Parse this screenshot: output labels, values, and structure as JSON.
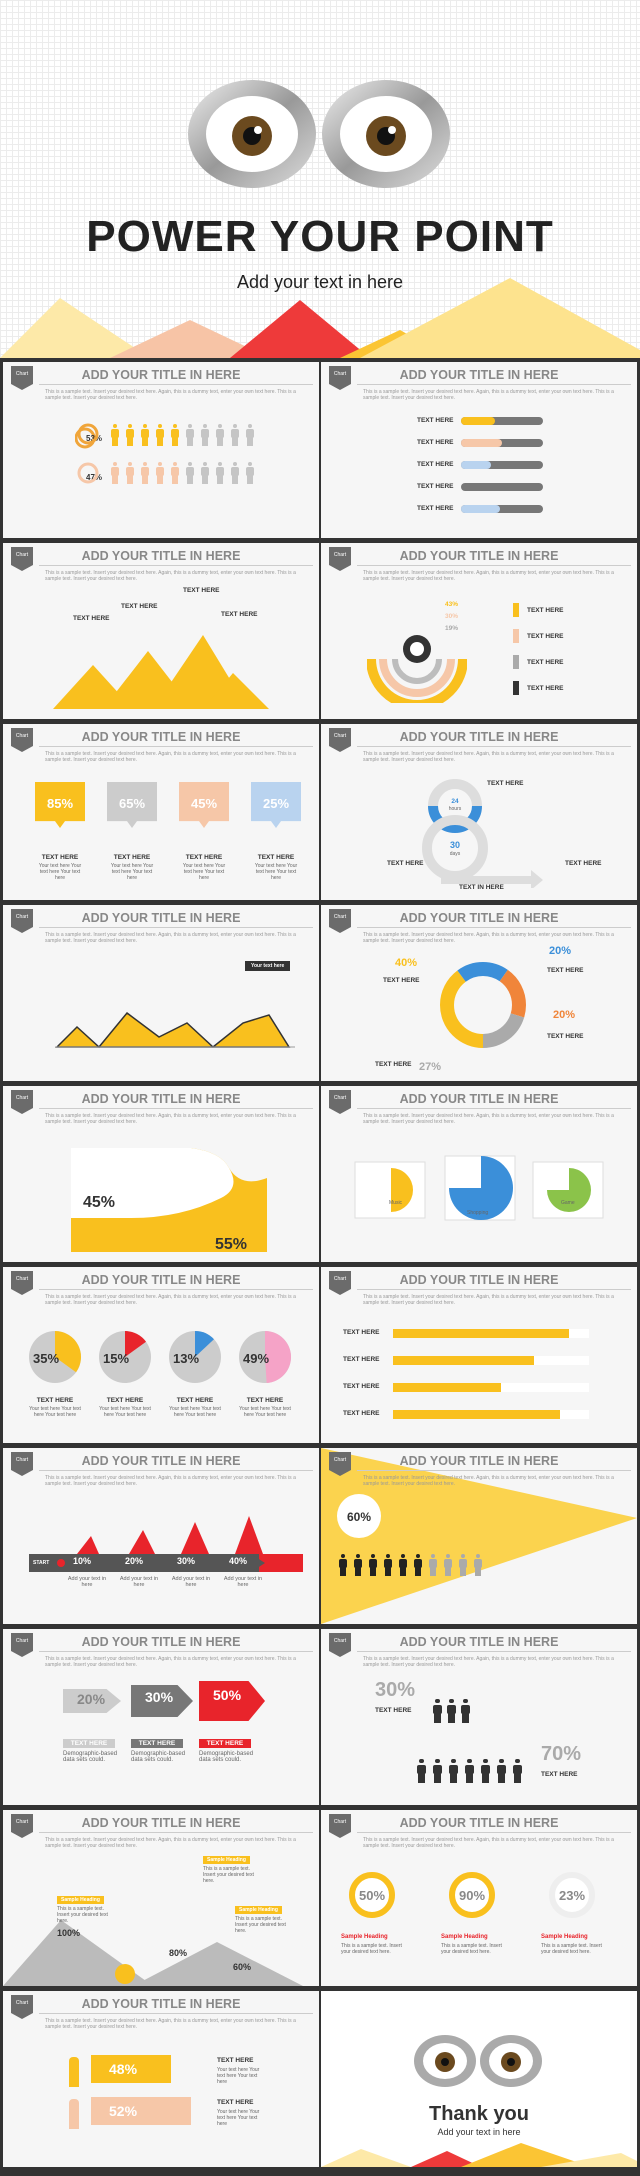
{
  "hero": {
    "title": "POWER YOUR POINT",
    "subtitle": "Add your text in here"
  },
  "slide_title": "ADD YOUR TITLE IN HERE",
  "badge": "Chart",
  "sample": "This is a sample text. Insert your desired text here. Again, this is a dummy text, enter your own text here. This is a sample text. Insert your desired text here.",
  "text_here": "TEXT HERE",
  "small_text": "Your text here Your text here Your text here",
  "colors": {
    "yellow": "#f9c01e",
    "orange": "#f0853a",
    "peach": "#f6c7a8",
    "red": "#e8242b",
    "blue": "#3b8fd9",
    "lightblue": "#b9d3ef",
    "gray": "#9a9a9a",
    "dark": "#333333",
    "pink": "#f5a3c7",
    "green": "#8bc34a"
  },
  "s1": {
    "a": "53%",
    "b": "47%"
  },
  "s3": {
    "a": "43%",
    "b": "30%",
    "c": "19%"
  },
  "s4": {
    "values": [
      "85%",
      "65%",
      "45%",
      "25%"
    ]
  },
  "s5": {
    "days_a": "24",
    "days_a_label": "hours",
    "days_b": "30",
    "days_b_label": "days",
    "bottom": "TEXT IN HERE"
  },
  "s6": {
    "callout": "Your text here"
  },
  "s7": {
    "values": [
      "40%",
      "20%",
      "20%",
      "27%"
    ]
  },
  "s8": {
    "a": "45%",
    "b": "55%"
  },
  "s9": {
    "labels": [
      "Music",
      "Shopping",
      "Game"
    ]
  },
  "s10": {
    "values": [
      "35%",
      "15%",
      "13%",
      "49%"
    ]
  },
  "s12": {
    "start": "START",
    "values": [
      "10%",
      "20%",
      "30%",
      "40%"
    ],
    "caption": "Add your text in here"
  },
  "s13": {
    "value": "60%"
  },
  "s14": {
    "values": [
      "20%",
      "30%",
      "50%"
    ],
    "caption": "Demographic-based data sets could."
  },
  "s15": {
    "a": "30%",
    "b": "70%"
  },
  "s16": {
    "values": [
      "100%",
      "80%",
      "60%"
    ],
    "heading": "Sample Heading",
    "body": "This is a sample text. Insert your desired text here."
  },
  "s17": {
    "values": [
      "50%",
      "90%",
      "23%"
    ],
    "heading": "Sample Heading",
    "body": "This is a sample text. Insert your desired text here."
  },
  "s18": {
    "a": "48%",
    "b": "52%"
  },
  "end": {
    "title": "Thank you",
    "subtitle": "Add your text in here"
  }
}
